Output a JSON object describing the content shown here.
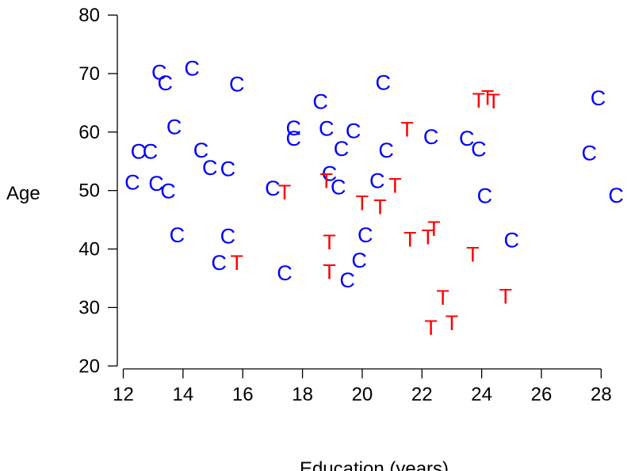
{
  "chart_data": {
    "type": "scatter",
    "title": "",
    "xlabel": "Education (years)",
    "ylabel": "Age",
    "xlim": [
      11.8,
      29
    ],
    "ylim": [
      19.5,
      81.5
    ],
    "xticks": [
      12,
      14,
      16,
      18,
      20,
      22,
      24,
      26,
      28
    ],
    "yticks": [
      20,
      30,
      40,
      50,
      60,
      70,
      80
    ],
    "grid": false,
    "legend": "none",
    "colors": {
      "C": "#0000ff",
      "T": "#ff0000"
    },
    "series": [
      {
        "marker": "C",
        "points": [
          [
            12.3,
            51.5
          ],
          [
            12.5,
            56.8
          ],
          [
            12.9,
            56.8
          ],
          [
            13.1,
            51.3
          ],
          [
            13.2,
            70.3
          ],
          [
            13.4,
            68.5
          ],
          [
            13.5,
            50.0
          ],
          [
            13.7,
            61.0
          ],
          [
            13.8,
            42.5
          ],
          [
            14.3,
            71.0
          ],
          [
            14.6,
            57.0
          ],
          [
            14.9,
            54.0
          ],
          [
            15.2,
            37.8
          ],
          [
            15.5,
            53.8
          ],
          [
            15.5,
            42.3
          ],
          [
            15.8,
            68.3
          ],
          [
            17.0,
            50.5
          ],
          [
            17.4,
            36.0
          ],
          [
            17.7,
            60.8
          ],
          [
            17.7,
            59.0
          ],
          [
            18.6,
            65.3
          ],
          [
            18.8,
            60.7
          ],
          [
            18.9,
            53.0
          ],
          [
            19.2,
            50.7
          ],
          [
            19.3,
            57.3
          ],
          [
            19.5,
            34.8
          ],
          [
            19.7,
            60.3
          ],
          [
            19.9,
            38.2
          ],
          [
            20.1,
            42.5
          ],
          [
            20.5,
            51.8
          ],
          [
            20.7,
            68.6
          ],
          [
            20.8,
            57.0
          ],
          [
            22.3,
            59.3
          ],
          [
            23.5,
            59.0
          ],
          [
            23.9,
            57.2
          ],
          [
            24.1,
            49.2
          ],
          [
            25.0,
            41.6
          ],
          [
            27.6,
            56.5
          ],
          [
            27.9,
            65.9
          ],
          [
            28.5,
            49.3
          ]
        ]
      },
      {
        "marker": "T",
        "points": [
          [
            15.8,
            37.8
          ],
          [
            17.4,
            49.8
          ],
          [
            18.8,
            51.8
          ],
          [
            18.9,
            41.3
          ],
          [
            18.9,
            36.2
          ],
          [
            20.0,
            48.0
          ],
          [
            20.6,
            47.3
          ],
          [
            21.1,
            51.0
          ],
          [
            21.5,
            60.6
          ],
          [
            21.6,
            41.8
          ],
          [
            22.2,
            42.2
          ],
          [
            22.3,
            26.7
          ],
          [
            22.4,
            43.6
          ],
          [
            22.7,
            31.8
          ],
          [
            23.0,
            27.5
          ],
          [
            23.7,
            39.2
          ],
          [
            23.9,
            65.5
          ],
          [
            24.2,
            66.0
          ],
          [
            24.4,
            65.4
          ],
          [
            24.8,
            32.0
          ]
        ]
      }
    ]
  }
}
